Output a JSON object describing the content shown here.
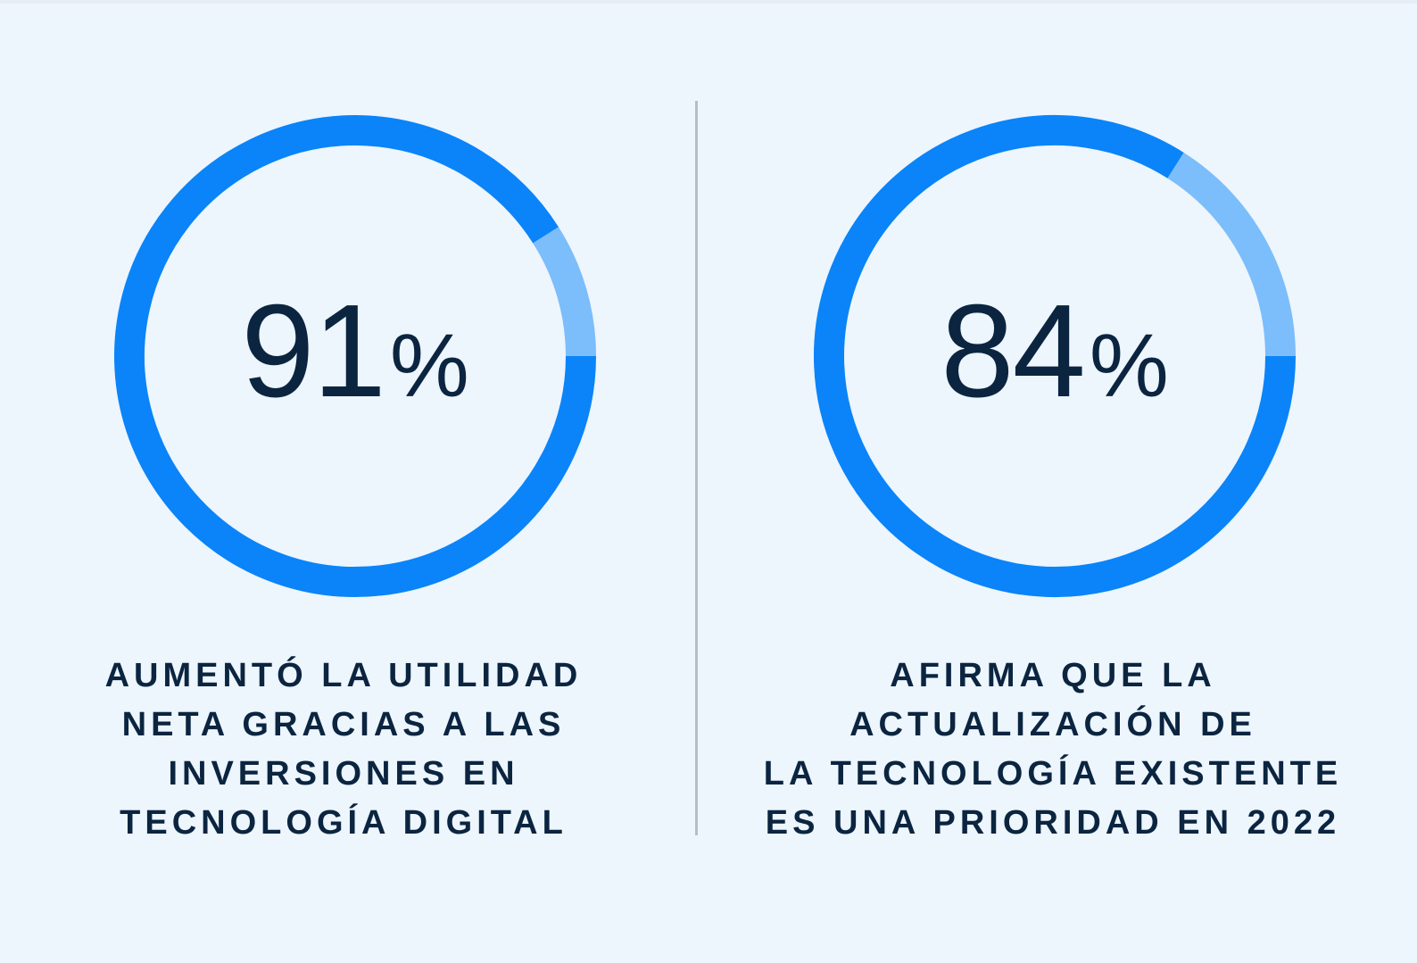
{
  "colors": {
    "background": "#EDF5FD",
    "primary": "#0A84F8",
    "secondary": "#7CBDFB",
    "text": "#0B2540",
    "divider": "#B8BEC5"
  },
  "chart_data": [
    {
      "type": "pie",
      "variant": "donut",
      "value": 91,
      "value_label": "91",
      "unit": "%",
      "slices": [
        {
          "value": 91,
          "color": "#0A84F8"
        },
        {
          "value": 9,
          "color": "#7CBDFB"
        }
      ],
      "caption_lines": [
        "AUMENTÓ LA UTILIDAD",
        "NETA GRACIAS A LAS",
        "INVERSIONES EN",
        "TECNOLOGÍA DIGITAL"
      ]
    },
    {
      "type": "pie",
      "variant": "donut",
      "value": 84,
      "value_label": "84",
      "unit": "%",
      "slices": [
        {
          "value": 84,
          "color": "#0A84F8"
        },
        {
          "value": 16,
          "color": "#7CBDFB"
        }
      ],
      "caption_lines": [
        "AFIRMA QUE LA",
        "ACTUALIZACIÓN DE",
        "LA TECNOLOGÍA EXISTENTE",
        "ES UNA PRIORIDAD EN 2022"
      ]
    }
  ]
}
